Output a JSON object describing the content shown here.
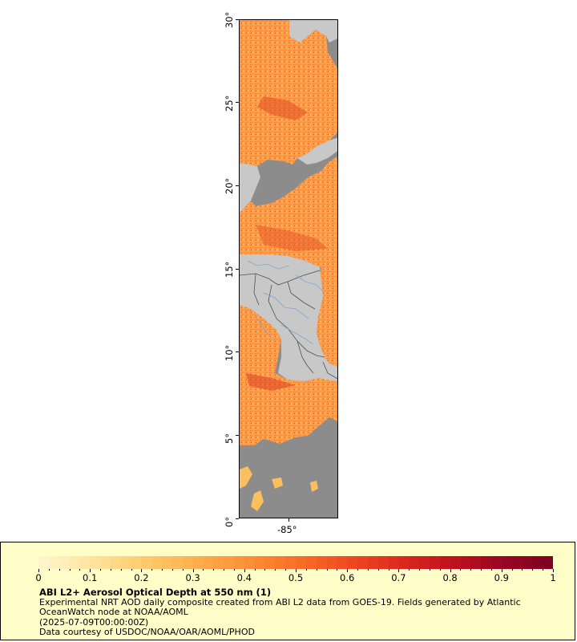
{
  "map": {
    "lat_ticks": [
      {
        "label": "0°",
        "lat": 0
      },
      {
        "label": "5°",
        "lat": 5
      },
      {
        "label": "10°",
        "lat": 10
      },
      {
        "label": "15°",
        "lat": 15
      },
      {
        "label": "20°",
        "lat": 20
      },
      {
        "label": "25°",
        "lat": 25
      },
      {
        "label": "30°",
        "lat": 30
      }
    ],
    "lon_ticks": [
      {
        "label": "-85°",
        "lon": -85
      }
    ],
    "lat_range": [
      0,
      30
    ],
    "lon_range": [
      -88,
      -82
    ],
    "colors": {
      "land": "#c8c8c8",
      "no_data_ocean": "#8c8c8c",
      "rivers": "#7fa6d0",
      "borders": "#505050"
    }
  },
  "legend": {
    "title": "ABI L2+ Aerosol Optical Depth at 550 nm (1)",
    "description": "Experimental NRT AOD daily composite created from ABI L2 data from GOES-19. Fields generated by Atlantic OceanWatch node at NOAA/AOML",
    "timestamp": "(2025-07-09T00:00:00Z)",
    "credit": "Data courtesy of USDOC/NOAA/OAR/AOML/PHOD",
    "colorbar": {
      "min": 0,
      "max": 1,
      "tick_labels": [
        "0",
        "0.1",
        "0.2",
        "0.3",
        "0.4",
        "0.5",
        "0.6",
        "0.7",
        "0.8",
        "0.9",
        "1"
      ],
      "colors": [
        "#fff7d0",
        "#ffe4a0",
        "#ffcc70",
        "#ffb050",
        "#fd9038",
        "#f87028",
        "#ef4b22",
        "#dd2a20",
        "#c0121e",
        "#9a0524",
        "#7e0023"
      ]
    }
  }
}
